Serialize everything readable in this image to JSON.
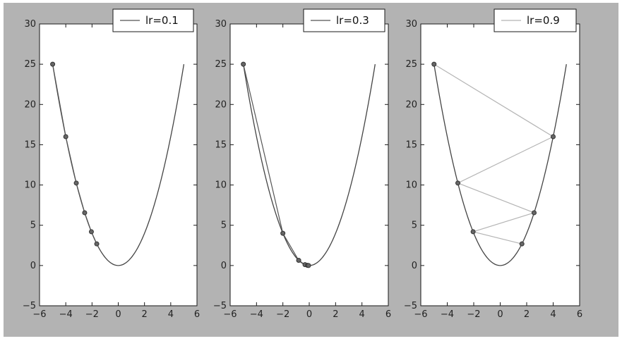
{
  "chart_data": [
    {
      "type": "line",
      "title": "",
      "xlabel": "",
      "ylabel": "",
      "xlim": [
        -6,
        6
      ],
      "ylim": [
        -5,
        30
      ],
      "x_ticks": [
        -6,
        -4,
        -2,
        0,
        2,
        4,
        6
      ],
      "y_ticks": [
        -5,
        0,
        5,
        10,
        15,
        20,
        25,
        30
      ],
      "x_tick_labels": [
        "−6",
        "−4",
        "−2",
        "0",
        "2",
        "4",
        "6"
      ],
      "y_tick_labels": [
        "−5",
        "0",
        "5",
        "10",
        "15",
        "20",
        "25",
        "30"
      ],
      "grid": false,
      "legend_position": "top-right",
      "curve": {
        "function": "y = x^2",
        "x_range": [
          -5,
          5
        ],
        "color": "#444444"
      },
      "series": [
        {
          "name": "lr=0.1",
          "color": "#555555",
          "x": [
            -5,
            -4,
            -3.2,
            -2.56,
            -2.048,
            -1.6384
          ],
          "y": [
            25,
            16,
            10.24,
            6.5536,
            4.194,
            2.684
          ]
        }
      ]
    },
    {
      "type": "line",
      "title": "",
      "xlabel": "",
      "ylabel": "",
      "xlim": [
        -6,
        6
      ],
      "ylim": [
        -5,
        30
      ],
      "x_ticks": [
        -6,
        -4,
        -2,
        0,
        2,
        4,
        6
      ],
      "y_ticks": [
        -5,
        0,
        5,
        10,
        15,
        20,
        25,
        30
      ],
      "x_tick_labels": [
        "−6",
        "−4",
        "−2",
        "0",
        "2",
        "4",
        "6"
      ],
      "y_tick_labels": [
        "−5",
        "0",
        "5",
        "10",
        "15",
        "20",
        "25",
        "30"
      ],
      "grid": false,
      "legend_position": "top-right",
      "curve": {
        "function": "y = x^2",
        "x_range": [
          -5,
          5
        ],
        "color": "#444444"
      },
      "series": [
        {
          "name": "lr=0.3",
          "color": "#555555",
          "x": [
            -5,
            -2,
            -0.8,
            -0.32,
            -0.128,
            -0.0512
          ],
          "y": [
            25,
            4,
            0.64,
            0.1024,
            0.0164,
            0.0026
          ]
        }
      ]
    },
    {
      "type": "line",
      "title": "",
      "xlabel": "",
      "ylabel": "",
      "xlim": [
        -6,
        6
      ],
      "ylim": [
        -5,
        30
      ],
      "x_ticks": [
        -6,
        -4,
        -2,
        0,
        2,
        4,
        6
      ],
      "y_ticks": [
        -5,
        0,
        5,
        10,
        15,
        20,
        25,
        30
      ],
      "x_tick_labels": [
        "−6",
        "−4",
        "−2",
        "0",
        "2",
        "4",
        "6"
      ],
      "y_tick_labels": [
        "−5",
        "0",
        "5",
        "10",
        "15",
        "20",
        "25",
        "30"
      ],
      "grid": false,
      "legend_position": "top-right",
      "curve": {
        "function": "y = x^2",
        "x_range": [
          -5,
          5
        ],
        "color": "#444444"
      },
      "series": [
        {
          "name": "lr=0.9",
          "color": "#b4b4b4",
          "x": [
            -5,
            4,
            -3.2,
            2.56,
            -2.048,
            1.6384
          ],
          "y": [
            25,
            16,
            10.24,
            6.5536,
            4.194,
            2.684
          ]
        }
      ]
    }
  ]
}
